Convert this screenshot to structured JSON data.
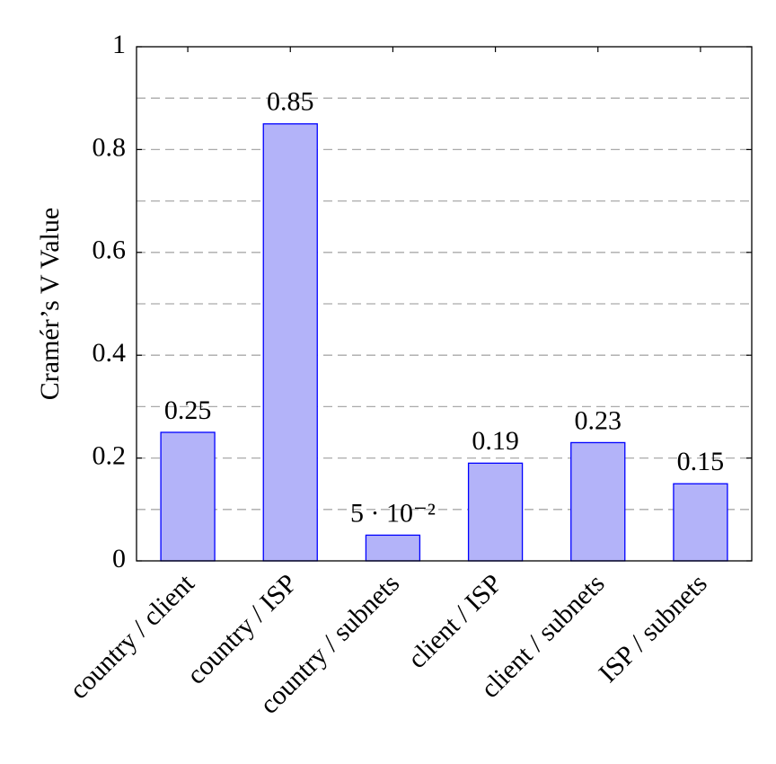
{
  "chart_data": {
    "type": "bar",
    "y_label": "Cramér’s V Value",
    "categories": [
      "country / client",
      "country / ISP",
      "country / subnets",
      "client / ISP",
      "client / subnets",
      "ISP / subnets"
    ],
    "values": [
      0.25,
      0.85,
      0.05,
      0.19,
      0.23,
      0.15
    ],
    "value_labels": [
      "0.25",
      "0.85",
      "5 · 10⁻²",
      "0.19",
      "0.23",
      "0.15"
    ],
    "color": "#b3b3f9",
    "edge_color": "#0000ff",
    "label_color": "#0000ff",
    "ylim": [
      0,
      1
    ],
    "yticks": [
      0,
      0.2,
      0.4,
      0.6,
      0.8,
      1
    ],
    "minor_yticks": [
      0.1,
      0.3,
      0.5,
      0.7,
      0.9
    ],
    "grid": true
  }
}
